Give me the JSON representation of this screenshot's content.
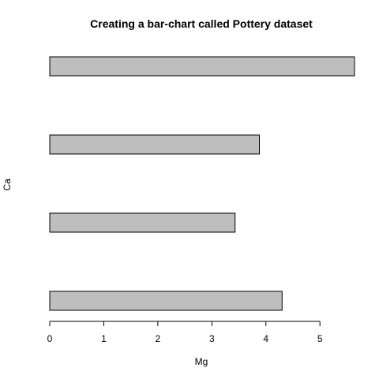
{
  "chart_data": {
    "type": "bar",
    "orientation": "horizontal",
    "title": "Creating a bar-chart called Pottery dataset",
    "xlabel": "Mg",
    "ylabel": "Ca",
    "values": [
      4.3,
      3.43,
      3.88,
      5.64
    ],
    "xlim": [
      0,
      5.64
    ],
    "xticks": [
      "0",
      "1",
      "2",
      "3",
      "4",
      "5"
    ],
    "bar_fill": "#bebebe",
    "bar_stroke": "#000000",
    "grid": false,
    "legend": "none"
  }
}
